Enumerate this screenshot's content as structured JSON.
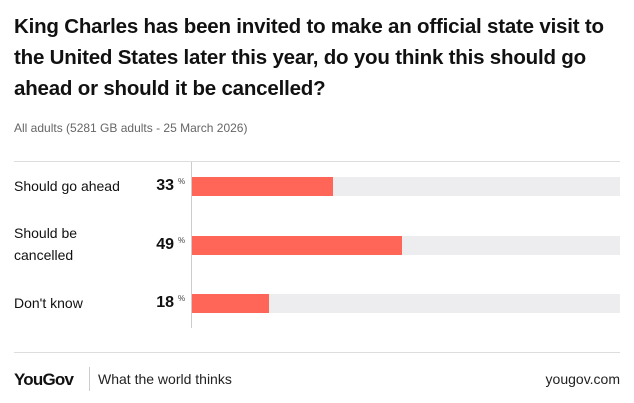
{
  "title": "King Charles has been invited to make an official state visit to the United States later this year, do you think this should go ahead or should it be cancelled?",
  "subtitle": "All adults (5281 GB adults - 25 March 2026)",
  "chart_data": {
    "type": "bar",
    "orientation": "horizontal",
    "categories": [
      "Should go ahead",
      "Should be cancelled",
      "Don't know"
    ],
    "values": [
      33,
      49,
      18
    ],
    "value_labels": [
      "33",
      "49",
      "18"
    ],
    "unit": "%",
    "xlim": [
      0,
      100
    ],
    "bar_color": "#ff6657",
    "track_color": "#ededf0"
  },
  "footer": {
    "logo": "YouGov",
    "tagline": "What the world thinks",
    "url": "yougov.com"
  }
}
